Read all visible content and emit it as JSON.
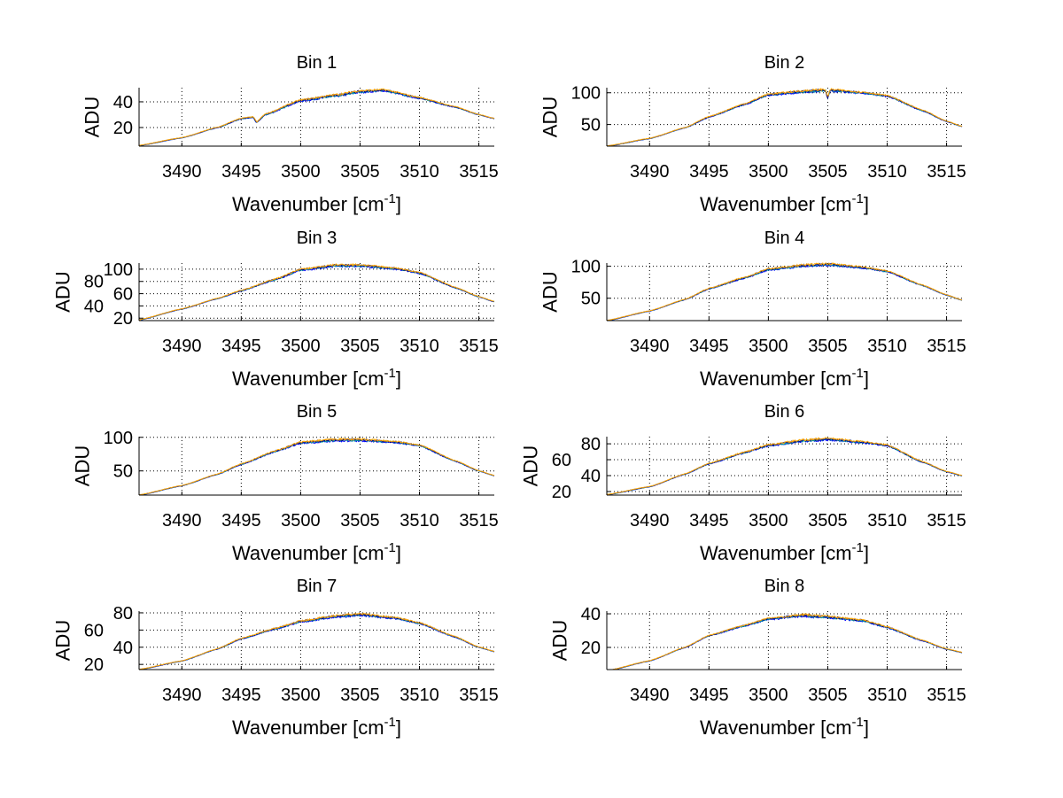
{
  "chart_data": [
    {
      "type": "line",
      "title": "Bin 1",
      "xlabel": "Wavenumber [cm",
      "xlabel_sup": "-1",
      "xlabel_end": "]",
      "ylabel": "ADU",
      "xlim": [
        3486.4,
        3516.3
      ],
      "ylim": [
        5.5,
        51
      ],
      "xticks": [
        3490,
        3495,
        3500,
        3505,
        3510,
        3515
      ],
      "yticks": [
        20,
        40
      ],
      "grid": true,
      "x": [
        3486.4,
        3490,
        3493,
        3495,
        3496,
        3496.3,
        3497,
        3500,
        3503,
        3505,
        3507,
        3510,
        3513,
        3515,
        3516.3
      ],
      "y": [
        6,
        12,
        20,
        27,
        28,
        24,
        30,
        41,
        45,
        48,
        49,
        43,
        36,
        30,
        27
      ]
    },
    {
      "type": "line",
      "title": "Bin 2",
      "xlabel": "Wavenumber [cm",
      "xlabel_sup": "-1",
      "xlabel_end": "]",
      "ylabel": "ADU",
      "xlim": [
        3486.4,
        3516.3
      ],
      "ylim": [
        16,
        108
      ],
      "xticks": [
        3490,
        3495,
        3500,
        3505,
        3510,
        3515
      ],
      "yticks": [
        50,
        100
      ],
      "grid": true,
      "x": [
        3486.4,
        3490,
        3493,
        3495,
        3498,
        3500,
        3503,
        3504.8,
        3505,
        3505.2,
        3508,
        3510,
        3513,
        3515,
        3516.3
      ],
      "y": [
        16,
        28,
        45,
        62,
        82,
        97,
        102,
        104,
        92,
        104,
        100,
        95,
        72,
        55,
        47
      ]
    },
    {
      "type": "line",
      "title": "Bin 3",
      "xlabel": "Wavenumber [cm",
      "xlabel_sup": "-1",
      "xlabel_end": "]",
      "ylabel": "ADU",
      "xlim": [
        3486.4,
        3516.3
      ],
      "ylim": [
        16,
        110
      ],
      "xticks": [
        3490,
        3495,
        3500,
        3505,
        3510,
        3515
      ],
      "yticks": [
        20,
        40,
        60,
        80,
        100
      ],
      "grid": true,
      "x": [
        3486.4,
        3490,
        3493,
        3495,
        3498,
        3500,
        3503,
        3505,
        3508,
        3510,
        3513,
        3515,
        3516.3
      ],
      "y": [
        17,
        35,
        52,
        65,
        84,
        99,
        106,
        106,
        101,
        94,
        70,
        55,
        47
      ]
    },
    {
      "type": "line",
      "title": "Bin 4",
      "xlabel": "Wavenumber [cm",
      "xlabel_sup": "-1",
      "xlabel_end": "]",
      "ylabel": "ADU",
      "xlim": [
        3486.4,
        3516.3
      ],
      "ylim": [
        15,
        105
      ],
      "xticks": [
        3490,
        3495,
        3500,
        3505,
        3510,
        3515
      ],
      "yticks": [
        50,
        100
      ],
      "grid": true,
      "x": [
        3486.4,
        3490,
        3493,
        3495,
        3498,
        3500,
        3503,
        3505,
        3508,
        3510,
        3513,
        3515,
        3516.3
      ],
      "y": [
        15,
        30,
        48,
        65,
        82,
        95,
        101,
        103,
        98,
        92,
        70,
        55,
        47
      ]
    },
    {
      "type": "line",
      "title": "Bin 5",
      "xlabel": "Wavenumber [cm",
      "xlabel_sup": "-1",
      "xlabel_end": "]",
      "ylabel": "ADU",
      "xlim": [
        3486.4,
        3516.3
      ],
      "ylim": [
        14,
        101
      ],
      "xticks": [
        3490,
        3495,
        3500,
        3505,
        3510,
        3515
      ],
      "yticks": [
        50,
        100
      ],
      "grid": true,
      "x": [
        3486.4,
        3490,
        3493,
        3495,
        3498,
        3500,
        3503,
        3505,
        3508,
        3510,
        3513,
        3515,
        3516.3
      ],
      "y": [
        14,
        28,
        45,
        60,
        80,
        92,
        96,
        96,
        93,
        88,
        65,
        50,
        43
      ]
    },
    {
      "type": "line",
      "title": "Bin 6",
      "xlabel": "Wavenumber [cm",
      "xlabel_sup": "-1",
      "xlabel_end": "]",
      "ylabel": "ADU",
      "xlim": [
        3486.4,
        3516.3
      ],
      "ylim": [
        15.5,
        89
      ],
      "xticks": [
        3490,
        3495,
        3500,
        3505,
        3510,
        3515
      ],
      "yticks": [
        20,
        40,
        60,
        80
      ],
      "grid": true,
      "x": [
        3486.4,
        3490,
        3493,
        3495,
        3498,
        3500,
        3503,
        3505,
        3508,
        3510,
        3513,
        3515,
        3516.3
      ],
      "y": [
        16,
        26,
        42,
        55,
        69,
        78,
        84,
        86,
        82,
        78,
        57,
        45,
        40
      ]
    },
    {
      "type": "line",
      "title": "Bin 7",
      "xlabel": "Wavenumber [cm",
      "xlabel_sup": "-1",
      "xlabel_end": "]",
      "ylabel": "ADU",
      "xlim": [
        3486.4,
        3516.3
      ],
      "ylim": [
        14,
        82
      ],
      "xticks": [
        3490,
        3495,
        3500,
        3505,
        3510,
        3515
      ],
      "yticks": [
        20,
        40,
        60,
        80
      ],
      "grid": true,
      "x": [
        3486.4,
        3490,
        3493,
        3495,
        3498,
        3500,
        3503,
        3505,
        3508,
        3510,
        3513,
        3515,
        3516.3
      ],
      "y": [
        14,
        24,
        38,
        50,
        62,
        70,
        76,
        78,
        74,
        68,
        52,
        40,
        35
      ]
    },
    {
      "type": "line",
      "title": "Bin 8",
      "xlabel": "Wavenumber [cm",
      "xlabel_sup": "-1",
      "xlabel_end": "]",
      "ylabel": "ADU",
      "xlim": [
        3486.4,
        3516.3
      ],
      "ylim": [
        6.8,
        41.6
      ],
      "xticks": [
        3490,
        3495,
        3500,
        3505,
        3510,
        3515
      ],
      "yticks": [
        20,
        40
      ],
      "grid": true,
      "x": [
        3486.4,
        3490,
        3493,
        3495,
        3498,
        3500,
        3503,
        3505,
        3508,
        3510,
        3513,
        3515,
        3516.3
      ],
      "y": [
        6,
        12,
        20,
        27,
        33,
        37,
        39,
        38,
        36,
        32,
        24,
        19,
        17
      ]
    }
  ],
  "series_colors": [
    "#0000ff",
    "#00a0a0",
    "#000080",
    "#ffa500"
  ]
}
